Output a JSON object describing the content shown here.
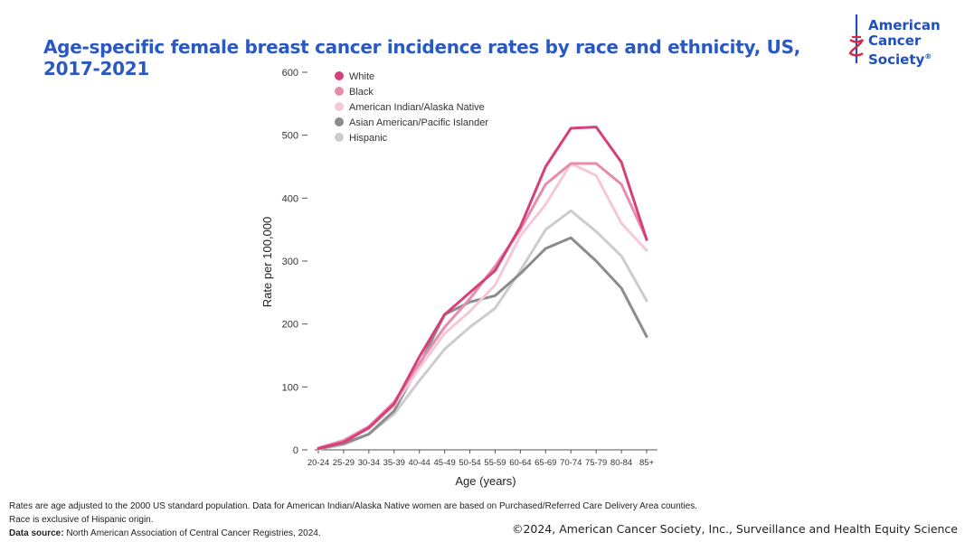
{
  "header": {
    "title": "Age-specific female breast cancer incidence rates by race and ethnicity, US, 2017-2021"
  },
  "logo": {
    "lines": [
      "American",
      "Cancer",
      "Society"
    ],
    "mark": "®",
    "icon": "sword-icon"
  },
  "colors": {
    "title": "#2b59c3",
    "white": "#d6407a",
    "black": "#e88bad",
    "aian": "#f5c8d8",
    "aapi": "#8c8c8c",
    "hispanic": "#cccccc"
  },
  "chart_data": {
    "type": "line",
    "title": "",
    "xlabel": "Age (years)",
    "ylabel": "Rate per 100,000",
    "ylim": [
      0,
      600
    ],
    "yticks": [
      0,
      100,
      200,
      300,
      400,
      500,
      600
    ],
    "grid": false,
    "legend_position": "top-left",
    "categories": [
      "20-24",
      "25-29",
      "30-34",
      "35-39",
      "40-44",
      "45-49",
      "50-54",
      "55-59",
      "60-64",
      "65-69",
      "70-74",
      "75-79",
      "80-84",
      "85+"
    ],
    "series": [
      {
        "name": "White",
        "color": "#d6407a",
        "values": [
          2,
          12,
          35,
          73,
          148,
          215,
          250,
          285,
          355,
          450,
          511,
          513,
          457,
          334
        ]
      },
      {
        "name": "Black",
        "color": "#e88bad",
        "values": [
          3,
          15,
          37,
          76,
          138,
          195,
          240,
          292,
          350,
          422,
          455,
          455,
          422,
          335
        ]
      },
      {
        "name": "American Indian/Alaska Native",
        "color": "#f5c8d8",
        "values": [
          3,
          13,
          34,
          70,
          130,
          185,
          220,
          262,
          340,
          390,
          455,
          436,
          360,
          317
        ]
      },
      {
        "name": "Asian American/Pacific Islander",
        "color": "#8c8c8c",
        "values": [
          2,
          10,
          25,
          62,
          135,
          215,
          235,
          245,
          280,
          320,
          337,
          300,
          257,
          180
        ]
      },
      {
        "name": "Hispanic",
        "color": "#cccccc",
        "values": [
          1,
          8,
          25,
          57,
          110,
          160,
          195,
          225,
          285,
          350,
          380,
          347,
          308,
          237
        ]
      }
    ]
  },
  "footnotes": {
    "line1": "Rates are age adjusted to the 2000 US standard population. Data for American Indian/Alaska Native women are based on Purchased/Referred Care Delivery Area counties.",
    "line2": "Race is exclusive of Hispanic origin.",
    "source_label": "Data source:",
    "source_text": " North American Association of Central Cancer Registries, 2024."
  },
  "copyright": "©2024, American Cancer Society, Inc., Surveillance and Health Equity Science"
}
